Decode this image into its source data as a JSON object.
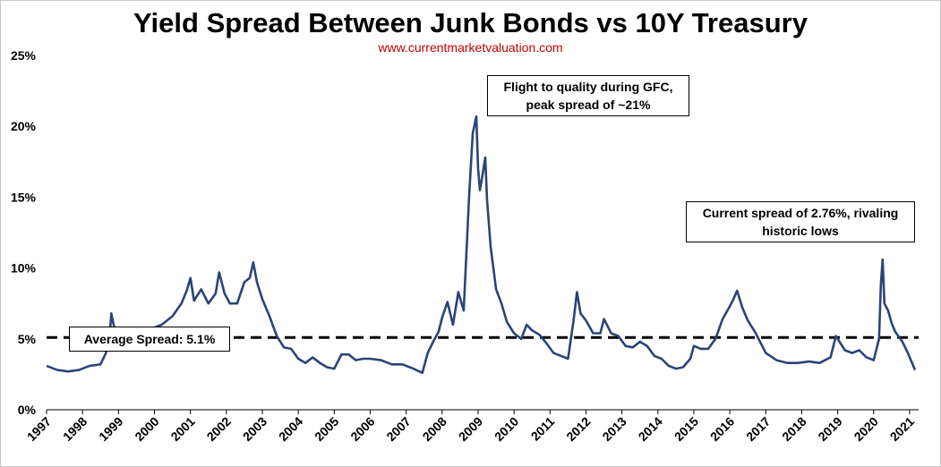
{
  "chart_data": {
    "type": "line",
    "title": "Yield Spread Between Junk Bonds vs 10Y Treasury",
    "subtitle": "www.currentmarketvaluation.com",
    "xlabel": "",
    "ylabel": "",
    "ylim": [
      0,
      25
    ],
    "xlim": [
      1997,
      2021.25
    ],
    "y_ticks": [
      "0%",
      "5%",
      "10%",
      "15%",
      "20%",
      "25%"
    ],
    "x_ticks": [
      "1997",
      "1998",
      "1999",
      "2000",
      "2001",
      "2002",
      "2003",
      "2004",
      "2005",
      "2006",
      "2007",
      "2008",
      "2009",
      "2010",
      "2011",
      "2012",
      "2013",
      "2014",
      "2015",
      "2016",
      "2017",
      "2018",
      "2019",
      "2020",
      "2021"
    ],
    "grid": false,
    "colors": {
      "line": "#2b4478",
      "average": "#000000"
    },
    "average_line": {
      "value": 5.1,
      "label": "Average Spread: 5.1%"
    },
    "annotations": [
      {
        "text_lines": [
          "Flight to quality during GFC,",
          "peak spread of ~21%"
        ]
      },
      {
        "text_lines": [
          "Current spread of 2.76%, rivaling",
          "historic lows"
        ]
      }
    ],
    "series": [
      {
        "x": [
          1997.0,
          1997.3,
          1997.6,
          1997.9,
          1998.2,
          1998.5,
          1998.65,
          1998.75,
          1998.8,
          1998.9,
          1999.0,
          1999.3,
          1999.6,
          1999.9,
          2000.2,
          2000.5,
          2000.75,
          2000.9,
          2001.0,
          2001.1,
          2001.3,
          2001.5,
          2001.7,
          2001.8,
          2001.95,
          2002.1,
          2002.3,
          2002.5,
          2002.65,
          2002.75,
          2002.85,
          2003.0,
          2003.2,
          2003.4,
          2003.6,
          2003.8,
          2004.0,
          2004.2,
          2004.4,
          2004.6,
          2004.8,
          2005.0,
          2005.2,
          2005.4,
          2005.6,
          2005.8,
          2006.0,
          2006.3,
          2006.6,
          2006.9,
          2007.2,
          2007.45,
          2007.6,
          2007.75,
          2007.9,
          2008.0,
          2008.15,
          2008.3,
          2008.45,
          2008.6,
          2008.75,
          2008.85,
          2008.95,
          2009.0,
          2009.05,
          2009.1,
          2009.2,
          2009.25,
          2009.35,
          2009.5,
          2009.65,
          2009.8,
          2010.0,
          2010.2,
          2010.35,
          2010.5,
          2010.7,
          2010.9,
          2011.1,
          2011.3,
          2011.5,
          2011.65,
          2011.75,
          2011.85,
          2012.0,
          2012.2,
          2012.4,
          2012.5,
          2012.7,
          2012.9,
          2013.1,
          2013.3,
          2013.5,
          2013.7,
          2013.9,
          2014.1,
          2014.3,
          2014.5,
          2014.7,
          2014.9,
          2015.0,
          2015.2,
          2015.4,
          2015.6,
          2015.8,
          2016.0,
          2016.1,
          2016.2,
          2016.35,
          2016.5,
          2016.7,
          2016.9,
          2017.0,
          2017.3,
          2017.6,
          2017.9,
          2018.2,
          2018.5,
          2018.8,
          2018.95,
          2019.05,
          2019.2,
          2019.4,
          2019.6,
          2019.8,
          2020.0,
          2020.15,
          2020.2,
          2020.25,
          2020.3,
          2020.4,
          2020.5,
          2020.6,
          2020.8,
          2020.95,
          2021.05,
          2021.15
        ],
        "y": [
          3.1,
          2.8,
          2.7,
          2.8,
          3.1,
          3.2,
          4.0,
          5.0,
          6.8,
          5.6,
          5.3,
          5.4,
          5.5,
          5.7,
          6.0,
          6.6,
          7.5,
          8.4,
          9.3,
          7.7,
          8.5,
          7.5,
          8.2,
          9.7,
          8.2,
          7.5,
          7.5,
          9.0,
          9.3,
          10.4,
          9.0,
          7.8,
          6.6,
          5.2,
          4.4,
          4.3,
          3.6,
          3.3,
          3.7,
          3.3,
          3.0,
          2.9,
          3.9,
          3.9,
          3.5,
          3.6,
          3.6,
          3.5,
          3.2,
          3.2,
          2.9,
          2.6,
          4.0,
          4.8,
          5.5,
          6.5,
          7.6,
          6.0,
          8.3,
          7.0,
          15.0,
          19.5,
          20.7,
          17.0,
          15.5,
          16.2,
          17.8,
          14.8,
          11.5,
          8.5,
          7.5,
          6.2,
          5.4,
          5.0,
          6.0,
          5.6,
          5.3,
          4.7,
          4.0,
          3.8,
          3.6,
          6.2,
          8.3,
          6.8,
          6.3,
          5.4,
          5.4,
          6.4,
          5.4,
          5.2,
          4.5,
          4.4,
          4.8,
          4.5,
          3.8,
          3.6,
          3.1,
          2.9,
          3.0,
          3.6,
          4.5,
          4.3,
          4.3,
          5.0,
          6.4,
          7.3,
          7.8,
          8.4,
          7.2,
          6.3,
          5.5,
          4.5,
          4.0,
          3.5,
          3.3,
          3.3,
          3.4,
          3.3,
          3.7,
          5.2,
          4.8,
          4.2,
          4.0,
          4.2,
          3.7,
          3.5,
          5.0,
          8.8,
          10.6,
          7.5,
          7.0,
          6.1,
          5.5,
          4.8,
          4.0,
          3.4,
          2.8
        ]
      }
    ]
  }
}
